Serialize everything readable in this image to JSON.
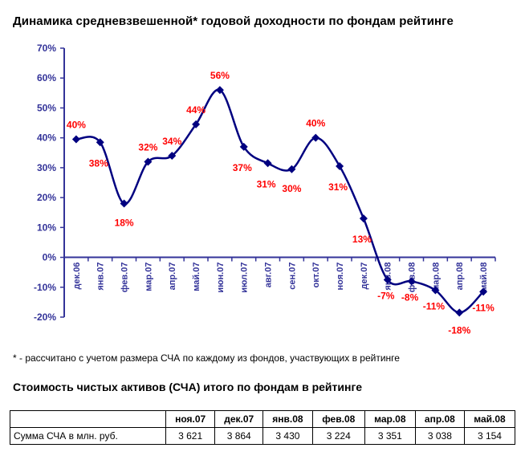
{
  "title": "Динамика средневзвешенной* годовой доходности по фондам рейтинге",
  "footnote": "* - рассчитано с учетом размера СЧА по каждому из фондов, участвующих в рейтинге",
  "colors": {
    "line": "#000080",
    "axis": "#333399",
    "labels": "#ff0000"
  },
  "chart_data": {
    "type": "line",
    "categories": [
      "дек.06",
      "янв.07",
      "фев.07",
      "мар.07",
      "апр.07",
      "май.07",
      "июн.07",
      "июл.07",
      "авг.07",
      "сен.07",
      "окт.07",
      "ноя.07",
      "дек.07",
      "янв.08",
      "фев.08",
      "мар.08",
      "апр.08",
      "май.08"
    ],
    "values": [
      39.5,
      38.5,
      18,
      32,
      34,
      44.5,
      56,
      37,
      31.5,
      29.5,
      40,
      30.5,
      13,
      -7.5,
      -8,
      -11,
      -18.5,
      -11.5
    ],
    "data_labels": [
      "40%",
      "38%",
      "18%",
      "32%",
      "34%",
      "44%",
      "56%",
      "37%",
      "31%",
      "30%",
      "40%",
      "31%",
      "13%",
      "-7%",
      "-8%",
      "-11%",
      "-18%",
      "-11%"
    ],
    "y_ticks": [
      "70%",
      "60%",
      "50%",
      "40%",
      "30%",
      "20%",
      "10%",
      "0%",
      "-10%",
      "-20%"
    ],
    "ylim": [
      -20,
      70
    ],
    "grid": false,
    "smooth": true,
    "marker": "diamond"
  },
  "table": {
    "title": "Стоимость чистых активов (СЧА) итого по фондам в рейтинге",
    "headers": [
      "ноя.07",
      "дек.07",
      "янв.08",
      "фев.08",
      "мар.08",
      "апр.08",
      "май.08"
    ],
    "row_label": "Сумма СЧА в млн. руб.",
    "values": [
      "3 621",
      "3 864",
      "3 430",
      "3 224",
      "3 351",
      "3 038",
      "3 154"
    ]
  }
}
